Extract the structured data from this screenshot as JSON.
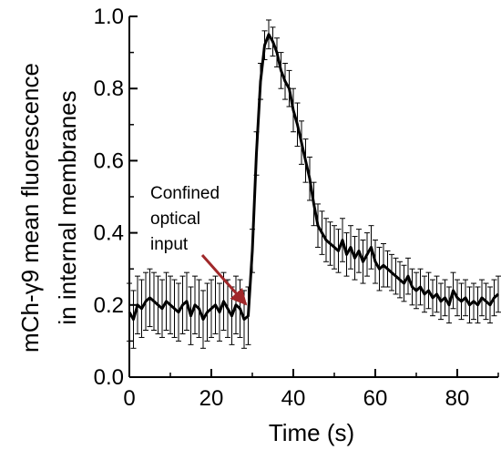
{
  "chart_data": {
    "type": "line",
    "xlabel": "Time (s)",
    "ylabel_line1": "mCh-γ9 mean fluorescence",
    "ylabel_line2": "in internal membranes",
    "xlim": [
      0,
      90
    ],
    "ylim": [
      0,
      1.0
    ],
    "xticks": [
      "0",
      "20",
      "40",
      "60",
      "80"
    ],
    "yticks": [
      "0.0",
      "0.2",
      "0.4",
      "0.6",
      "0.8",
      "1.0"
    ],
    "annotation": {
      "lines": [
        "Confined",
        "optical",
        "input"
      ],
      "arrow_color": "#a0282a"
    },
    "grid": false,
    "series": [
      {
        "x": [
          0,
          1,
          2,
          3,
          4,
          5,
          6,
          7,
          8,
          9,
          10,
          11,
          12,
          13,
          14,
          15,
          16,
          17,
          18,
          19,
          20,
          21,
          22,
          23,
          24,
          25,
          26,
          27,
          28,
          29,
          30,
          31,
          32,
          33,
          34,
          35,
          36,
          37,
          38,
          39,
          40,
          41,
          42,
          43,
          44,
          45,
          46,
          47,
          48,
          49,
          50,
          51,
          52,
          53,
          54,
          55,
          56,
          57,
          58,
          59,
          60,
          61,
          62,
          63,
          64,
          65,
          66,
          67,
          68,
          69,
          70,
          71,
          72,
          73,
          74,
          75,
          76,
          77,
          78,
          79,
          80,
          81,
          82,
          83,
          84,
          85,
          86,
          87,
          88,
          89,
          90
        ],
        "y": [
          0.18,
          0.16,
          0.2,
          0.19,
          0.21,
          0.22,
          0.21,
          0.2,
          0.19,
          0.21,
          0.2,
          0.19,
          0.18,
          0.2,
          0.21,
          0.17,
          0.2,
          0.19,
          0.16,
          0.18,
          0.19,
          0.2,
          0.18,
          0.21,
          0.19,
          0.17,
          0.2,
          0.19,
          0.16,
          0.17,
          0.35,
          0.62,
          0.82,
          0.92,
          0.95,
          0.93,
          0.9,
          0.85,
          0.82,
          0.8,
          0.74,
          0.7,
          0.65,
          0.6,
          0.55,
          0.48,
          0.42,
          0.4,
          0.38,
          0.37,
          0.36,
          0.35,
          0.38,
          0.34,
          0.36,
          0.33,
          0.35,
          0.32,
          0.34,
          0.36,
          0.32,
          0.3,
          0.31,
          0.3,
          0.29,
          0.28,
          0.27,
          0.26,
          0.28,
          0.25,
          0.24,
          0.25,
          0.23,
          0.24,
          0.22,
          0.23,
          0.21,
          0.22,
          0.2,
          0.24,
          0.22,
          0.21,
          0.22,
          0.2,
          0.21,
          0.2,
          0.22,
          0.21,
          0.2,
          0.22,
          0.23
        ],
        "err": [
          0.08,
          0.08,
          0.08,
          0.08,
          0.08,
          0.08,
          0.08,
          0.08,
          0.08,
          0.08,
          0.08,
          0.08,
          0.08,
          0.08,
          0.08,
          0.08,
          0.08,
          0.08,
          0.08,
          0.08,
          0.08,
          0.08,
          0.08,
          0.08,
          0.08,
          0.08,
          0.08,
          0.08,
          0.08,
          0.08,
          0.06,
          0.06,
          0.05,
          0.04,
          0.04,
          0.04,
          0.04,
          0.05,
          0.05,
          0.05,
          0.06,
          0.06,
          0.06,
          0.06,
          0.06,
          0.06,
          0.06,
          0.06,
          0.06,
          0.06,
          0.06,
          0.06,
          0.06,
          0.06,
          0.06,
          0.06,
          0.06,
          0.06,
          0.06,
          0.06,
          0.06,
          0.06,
          0.06,
          0.05,
          0.05,
          0.05,
          0.05,
          0.05,
          0.05,
          0.05,
          0.05,
          0.05,
          0.05,
          0.05,
          0.05,
          0.05,
          0.05,
          0.05,
          0.05,
          0.05,
          0.05,
          0.05,
          0.05,
          0.05,
          0.05,
          0.05,
          0.05,
          0.05,
          0.05,
          0.05,
          0.05
        ]
      }
    ]
  }
}
